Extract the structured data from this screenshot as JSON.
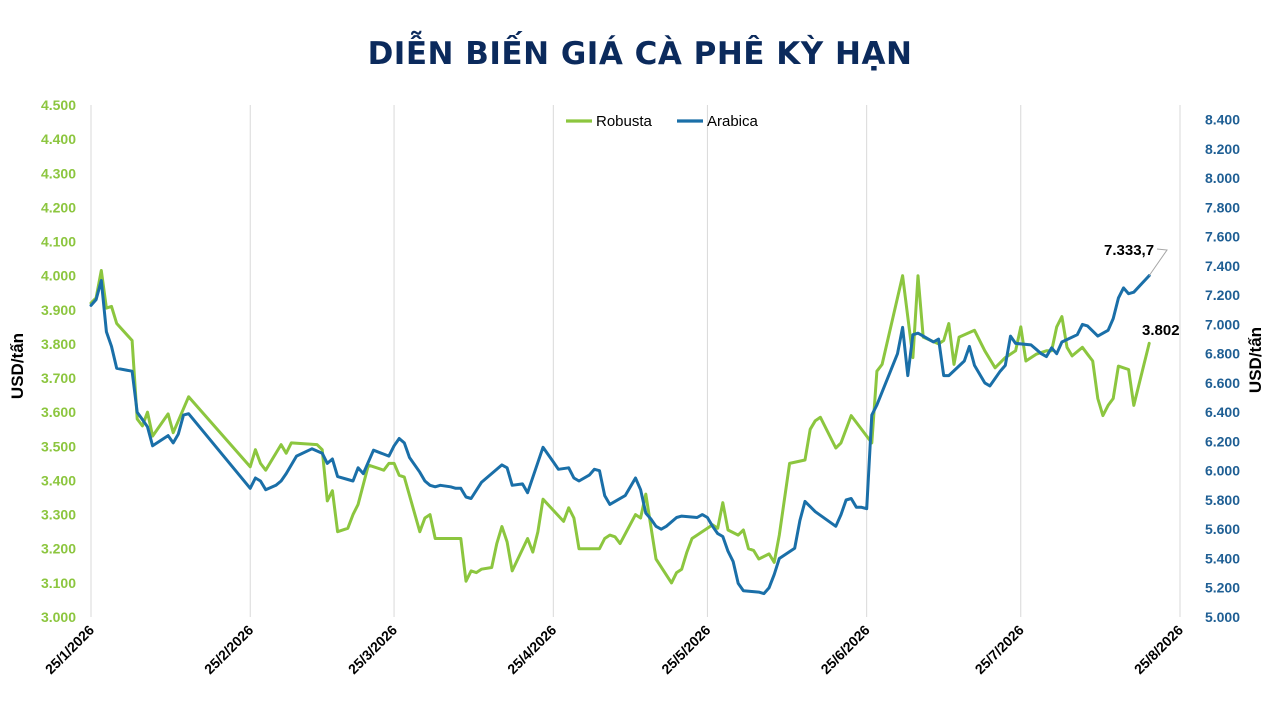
{
  "chart_data": {
    "type": "line",
    "title": "DIỄN BIẾN GIÁ CÀ PHÊ KỲ HẠN",
    "ylabel_left": "USD/tấn",
    "ylabel_right": "USD/tấn",
    "ylim_left": [
      3000,
      4500
    ],
    "ylim_right": [
      5000,
      8500
    ],
    "yticks_left": [
      "3.000",
      "3.100",
      "3.200",
      "3.300",
      "3.400",
      "3.500",
      "3.600",
      "3.700",
      "3.800",
      "3.900",
      "4.000",
      "4.100",
      "4.200",
      "4.300",
      "4.400",
      "4.500"
    ],
    "yticks_right": [
      "5.000",
      "5.200",
      "5.400",
      "5.600",
      "5.800",
      "6.000",
      "6.200",
      "6.400",
      "6.600",
      "6.800",
      "7.000",
      "7.200",
      "7.400",
      "7.600",
      "7.800",
      "8.000",
      "8.200",
      "8.400"
    ],
    "xticks": [
      {
        "label": "25/1/2026",
        "day": 0
      },
      {
        "label": "25/2/2026",
        "day": 31
      },
      {
        "label": "25/3/2026",
        "day": 59
      },
      {
        "label": "25/4/2026",
        "day": 90
      },
      {
        "label": "25/5/2026",
        "day": 120
      },
      {
        "label": "25/6/2026",
        "day": 151
      },
      {
        "label": "25/7/2026",
        "day": 181
      },
      {
        "label": "25/8/2026",
        "day": 212
      }
    ],
    "grid": "vertical",
    "legend_position": "top-center",
    "colors": {
      "robusta": "#8cc63f",
      "arabica": "#1a6fa8",
      "left_axis": "#8cc63f",
      "right_axis": "#1f5f94",
      "grid": "#d9d9d9",
      "title": "#0b2a5c"
    },
    "series": [
      {
        "name": "Robusta",
        "axis": "left",
        "points": [
          [
            0,
            3920
          ],
          [
            1,
            3935
          ],
          [
            2,
            4015
          ],
          [
            3,
            3905
          ],
          [
            4,
            3910
          ],
          [
            5,
            3860
          ],
          [
            8,
            3810
          ],
          [
            9,
            3580
          ],
          [
            10,
            3560
          ],
          [
            11,
            3600
          ],
          [
            12,
            3530
          ],
          [
            15,
            3595
          ],
          [
            16,
            3540
          ],
          [
            19,
            3645
          ],
          [
            31,
            3440
          ],
          [
            32,
            3490
          ],
          [
            33,
            3450
          ],
          [
            34,
            3430
          ],
          [
            37,
            3505
          ],
          [
            38,
            3480
          ],
          [
            39,
            3510
          ],
          [
            44,
            3505
          ],
          [
            45,
            3490
          ],
          [
            46,
            3340
          ],
          [
            47,
            3370
          ],
          [
            48,
            3250
          ],
          [
            50,
            3260
          ],
          [
            51,
            3300
          ],
          [
            52,
            3330
          ],
          [
            54,
            3445
          ],
          [
            57,
            3430
          ],
          [
            58,
            3450
          ],
          [
            59,
            3450
          ],
          [
            60,
            3415
          ],
          [
            61,
            3410
          ],
          [
            64,
            3250
          ],
          [
            65,
            3290
          ],
          [
            66,
            3300
          ],
          [
            67,
            3230
          ],
          [
            72,
            3230
          ],
          [
            73,
            3105
          ],
          [
            74,
            3135
          ],
          [
            75,
            3130
          ],
          [
            76,
            3140
          ],
          [
            78,
            3145
          ],
          [
            79,
            3215
          ],
          [
            80,
            3265
          ],
          [
            81,
            3220
          ],
          [
            82,
            3135
          ],
          [
            85,
            3230
          ],
          [
            86,
            3190
          ],
          [
            87,
            3250
          ],
          [
            88,
            3345
          ],
          [
            92,
            3280
          ],
          [
            93,
            3320
          ],
          [
            94,
            3290
          ],
          [
            95,
            3200
          ],
          [
            99,
            3200
          ],
          [
            100,
            3230
          ],
          [
            101,
            3240
          ],
          [
            102,
            3235
          ],
          [
            103,
            3215
          ],
          [
            106,
            3300
          ],
          [
            107,
            3290
          ],
          [
            108,
            3360
          ],
          [
            110,
            3170
          ],
          [
            113,
            3100
          ],
          [
            114,
            3130
          ],
          [
            115,
            3140
          ],
          [
            116,
            3190
          ],
          [
            117,
            3230
          ],
          [
            120,
            3260
          ],
          [
            121,
            3270
          ],
          [
            122,
            3260
          ],
          [
            123,
            3335
          ],
          [
            124,
            3255
          ],
          [
            126,
            3240
          ],
          [
            127,
            3255
          ],
          [
            128,
            3200
          ],
          [
            129,
            3195
          ],
          [
            130,
            3170
          ],
          [
            132,
            3185
          ],
          [
            133,
            3160
          ],
          [
            134,
            3240
          ],
          [
            136,
            3450
          ],
          [
            139,
            3460
          ],
          [
            140,
            3550
          ],
          [
            141,
            3575
          ],
          [
            142,
            3585
          ],
          [
            145,
            3495
          ],
          [
            146,
            3510
          ],
          [
            148,
            3590
          ],
          [
            152,
            3510
          ],
          [
            153,
            3720
          ],
          [
            154,
            3740
          ],
          [
            158,
            4000
          ],
          [
            160,
            3760
          ],
          [
            161,
            4000
          ],
          [
            162,
            3820
          ],
          [
            165,
            3800
          ],
          [
            166,
            3810
          ],
          [
            167,
            3860
          ],
          [
            168,
            3740
          ],
          [
            169,
            3820
          ],
          [
            172,
            3840
          ],
          [
            174,
            3780
          ],
          [
            176,
            3730
          ],
          [
            178,
            3760
          ],
          [
            180,
            3780
          ],
          [
            181,
            3850
          ],
          [
            182,
            3750
          ],
          [
            184,
            3770
          ],
          [
            186,
            3780
          ],
          [
            187,
            3780
          ],
          [
            188,
            3850
          ],
          [
            189,
            3880
          ],
          [
            190,
            3790
          ],
          [
            191,
            3765
          ],
          [
            193,
            3790
          ],
          [
            194,
            3770
          ],
          [
            195,
            3750
          ],
          [
            196,
            3640
          ],
          [
            197,
            3590
          ],
          [
            198,
            3620
          ],
          [
            199,
            3640
          ],
          [
            200,
            3735
          ],
          [
            201,
            3730
          ],
          [
            202,
            3725
          ],
          [
            203,
            3620
          ],
          [
            206,
            3802
          ]
        ]
      },
      {
        "name": "Arabica",
        "axis": "right",
        "points": [
          [
            0,
            7130
          ],
          [
            1,
            7170
          ],
          [
            2,
            7300
          ],
          [
            3,
            6950
          ],
          [
            4,
            6850
          ],
          [
            5,
            6700
          ],
          [
            8,
            6680
          ],
          [
            9,
            6400
          ],
          [
            10,
            6350
          ],
          [
            11,
            6300
          ],
          [
            12,
            6170
          ],
          [
            15,
            6240
          ],
          [
            16,
            6190
          ],
          [
            17,
            6250
          ],
          [
            18,
            6380
          ],
          [
            19,
            6390
          ],
          [
            31,
            5880
          ],
          [
            32,
            5950
          ],
          [
            33,
            5930
          ],
          [
            34,
            5870
          ],
          [
            36,
            5900
          ],
          [
            37,
            5930
          ],
          [
            38,
            5980
          ],
          [
            40,
            6100
          ],
          [
            43,
            6150
          ],
          [
            45,
            6120
          ],
          [
            46,
            6050
          ],
          [
            47,
            6080
          ],
          [
            48,
            5960
          ],
          [
            50,
            5940
          ],
          [
            51,
            5930
          ],
          [
            52,
            6020
          ],
          [
            53,
            5980
          ],
          [
            55,
            6140
          ],
          [
            58,
            6100
          ],
          [
            59,
            6170
          ],
          [
            60,
            6220
          ],
          [
            61,
            6190
          ],
          [
            62,
            6090
          ],
          [
            64,
            5990
          ],
          [
            65,
            5930
          ],
          [
            66,
            5900
          ],
          [
            67,
            5890
          ],
          [
            68,
            5900
          ],
          [
            70,
            5890
          ],
          [
            71,
            5880
          ],
          [
            72,
            5880
          ],
          [
            73,
            5820
          ],
          [
            74,
            5810
          ],
          [
            76,
            5920
          ],
          [
            80,
            6040
          ],
          [
            81,
            6020
          ],
          [
            82,
            5900
          ],
          [
            84,
            5910
          ],
          [
            85,
            5850
          ],
          [
            88,
            6160
          ],
          [
            90,
            6060
          ],
          [
            91,
            6010
          ],
          [
            93,
            6020
          ],
          [
            94,
            5950
          ],
          [
            95,
            5930
          ],
          [
            97,
            5970
          ],
          [
            98,
            6010
          ],
          [
            99,
            6000
          ],
          [
            100,
            5830
          ],
          [
            101,
            5770
          ],
          [
            102,
            5790
          ],
          [
            104,
            5830
          ],
          [
            106,
            5950
          ],
          [
            107,
            5870
          ],
          [
            108,
            5710
          ],
          [
            109,
            5670
          ],
          [
            110,
            5620
          ],
          [
            111,
            5600
          ],
          [
            112,
            5620
          ],
          [
            114,
            5680
          ],
          [
            115,
            5690
          ],
          [
            118,
            5680
          ],
          [
            119,
            5700
          ],
          [
            120,
            5680
          ],
          [
            121,
            5620
          ],
          [
            122,
            5570
          ],
          [
            123,
            5550
          ],
          [
            124,
            5450
          ],
          [
            125,
            5380
          ],
          [
            126,
            5230
          ],
          [
            127,
            5180
          ],
          [
            130,
            5170
          ],
          [
            131,
            5160
          ],
          [
            132,
            5200
          ],
          [
            133,
            5290
          ],
          [
            134,
            5400
          ],
          [
            137,
            5470
          ],
          [
            138,
            5660
          ],
          [
            139,
            5790
          ],
          [
            141,
            5720
          ],
          [
            145,
            5620
          ],
          [
            146,
            5700
          ],
          [
            147,
            5800
          ],
          [
            148,
            5810
          ],
          [
            149,
            5750
          ],
          [
            150,
            5750
          ],
          [
            151,
            5740
          ],
          [
            152,
            6380
          ],
          [
            153,
            6450
          ],
          [
            157,
            6800
          ],
          [
            158,
            6980
          ],
          [
            159,
            6650
          ],
          [
            160,
            6930
          ],
          [
            161,
            6940
          ],
          [
            162,
            6920
          ],
          [
            163,
            6900
          ],
          [
            164,
            6880
          ],
          [
            165,
            6900
          ],
          [
            166,
            6650
          ],
          [
            167,
            6650
          ],
          [
            170,
            6750
          ],
          [
            171,
            6850
          ],
          [
            172,
            6720
          ],
          [
            174,
            6600
          ],
          [
            175,
            6580
          ],
          [
            177,
            6680
          ],
          [
            178,
            6720
          ],
          [
            179,
            6920
          ],
          [
            180,
            6870
          ],
          [
            183,
            6860
          ],
          [
            184,
            6830
          ],
          [
            185,
            6800
          ],
          [
            186,
            6780
          ],
          [
            187,
            6840
          ],
          [
            188,
            6800
          ],
          [
            189,
            6880
          ],
          [
            192,
            6930
          ],
          [
            193,
            7000
          ],
          [
            194,
            6990
          ],
          [
            196,
            6920
          ],
          [
            198,
            6960
          ],
          [
            199,
            7040
          ],
          [
            200,
            7180
          ],
          [
            201,
            7250
          ],
          [
            202,
            7210
          ],
          [
            203,
            7220
          ],
          [
            206,
            7333.7
          ]
        ]
      }
    ],
    "annotations": [
      {
        "series": "Arabica",
        "day": 206,
        "text": "7.333,7"
      },
      {
        "series": "Robusta",
        "day": 206,
        "text": "3.802"
      }
    ]
  }
}
